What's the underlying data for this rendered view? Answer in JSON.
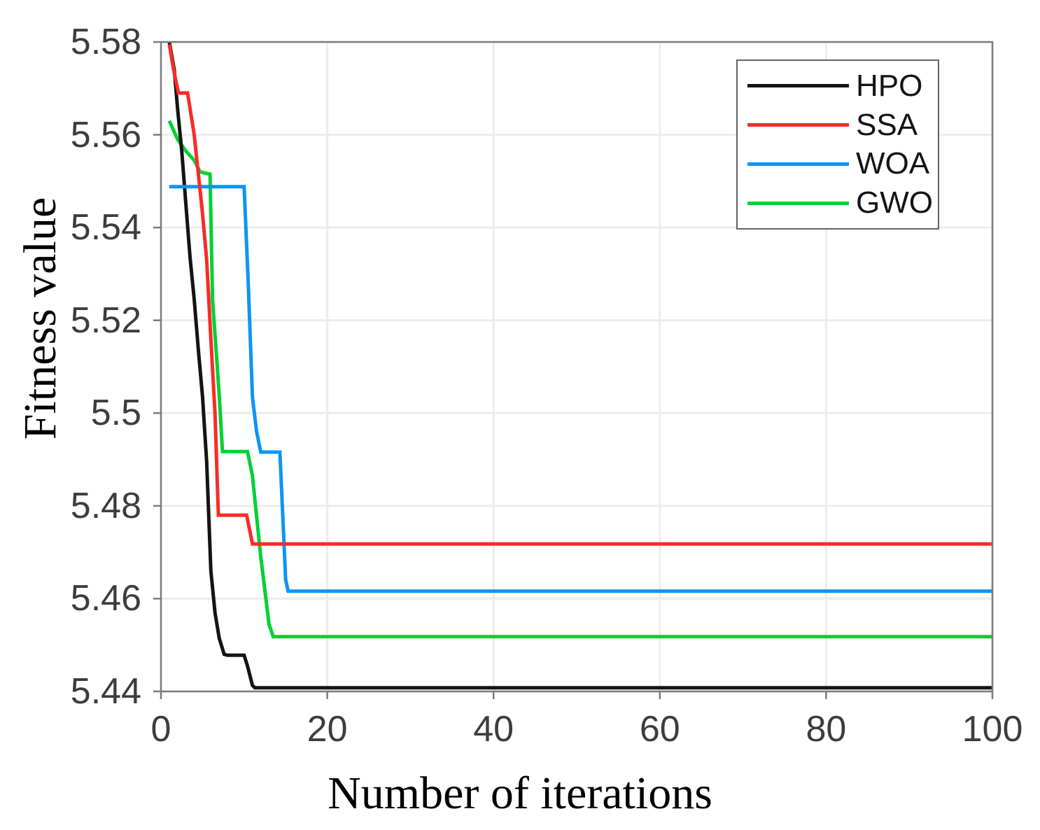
{
  "figure": {
    "background_color": "#ffffff",
    "axis_frame_color": "#7c7c7c",
    "gridline_color": "#ececec",
    "tick_label_color": "#3d3d3d"
  },
  "chart_data": {
    "type": "line",
    "title": "",
    "xlabel": "Number of iterations",
    "ylabel": "Fitness value",
    "xlim": [
      0,
      100
    ],
    "ylim": [
      5.44,
      5.58
    ],
    "xticks": [
      0,
      20,
      40,
      60,
      80,
      100
    ],
    "xtick_labels": [
      "0",
      "20",
      "40",
      "60",
      "80",
      "100"
    ],
    "yticks": [
      5.44,
      5.46,
      5.48,
      5.5,
      5.52,
      5.54,
      5.56,
      5.58
    ],
    "ytick_labels": [
      "5.44",
      "5.46",
      "5.48",
      "5.5",
      "5.52",
      "5.54",
      "5.56",
      "5.58"
    ],
    "grid": true,
    "legend_position": "top-right",
    "legend_items": [
      "HPO",
      "SSA",
      "WOA",
      "GWO"
    ],
    "draw_order": [
      "GWO",
      "HPO",
      "WOA",
      "SSA"
    ],
    "series": [
      {
        "name": "HPO",
        "color": "#141414",
        "final_value": 5.4408,
        "points": [
          [
            1,
            5.58
          ],
          [
            1.6,
            5.574
          ],
          [
            2,
            5.5655
          ],
          [
            2.5,
            5.5565
          ],
          [
            3,
            5.545
          ],
          [
            3.5,
            5.5335
          ],
          [
            4,
            5.5245
          ],
          [
            4.5,
            5.5135
          ],
          [
            5,
            5.5035
          ],
          [
            5.5,
            5.4895
          ],
          [
            6,
            5.466
          ],
          [
            6.5,
            5.457
          ],
          [
            7,
            5.4515
          ],
          [
            7.6,
            5.448
          ],
          [
            8,
            5.4478
          ],
          [
            10,
            5.4478
          ],
          [
            10.4,
            5.4455
          ],
          [
            11,
            5.4413
          ],
          [
            11.3,
            5.4408
          ],
          [
            100,
            5.4408
          ]
        ]
      },
      {
        "name": "SSA",
        "color": "#fa2b28",
        "final_value": 5.4718,
        "points": [
          [
            1,
            5.5795
          ],
          [
            1.5,
            5.5742
          ],
          [
            2.1,
            5.569
          ],
          [
            3.2,
            5.569
          ],
          [
            4,
            5.56
          ],
          [
            5,
            5.543
          ],
          [
            5.5,
            5.533
          ],
          [
            6,
            5.516
          ],
          [
            6.5,
            5.5
          ],
          [
            6.9,
            5.478
          ],
          [
            10.3,
            5.478
          ],
          [
            11,
            5.4718
          ],
          [
            100,
            5.4718
          ]
        ]
      },
      {
        "name": "WOA",
        "color": "#0e94f6",
        "final_value": 5.4616,
        "points": [
          [
            1,
            5.5488
          ],
          [
            10,
            5.5488
          ],
          [
            10.5,
            5.528
          ],
          [
            11,
            5.5035
          ],
          [
            11.5,
            5.496
          ],
          [
            12,
            5.4916
          ],
          [
            14.3,
            5.4916
          ],
          [
            15,
            5.464
          ],
          [
            15.3,
            5.4616
          ],
          [
            100,
            5.4616
          ]
        ]
      },
      {
        "name": "GWO",
        "color": "#04d132",
        "final_value": 5.4518,
        "points": [
          [
            1,
            5.563
          ],
          [
            2,
            5.559
          ],
          [
            3,
            5.5565
          ],
          [
            4,
            5.5545
          ],
          [
            4.7,
            5.552
          ],
          [
            5.9,
            5.5515
          ],
          [
            6.2,
            5.5245
          ],
          [
            7,
            5.504
          ],
          [
            7.4,
            5.4917
          ],
          [
            10.4,
            5.4917
          ],
          [
            11,
            5.4865
          ],
          [
            12,
            5.469
          ],
          [
            13,
            5.4545
          ],
          [
            13.5,
            5.4518
          ],
          [
            100,
            5.4518
          ]
        ]
      }
    ]
  }
}
